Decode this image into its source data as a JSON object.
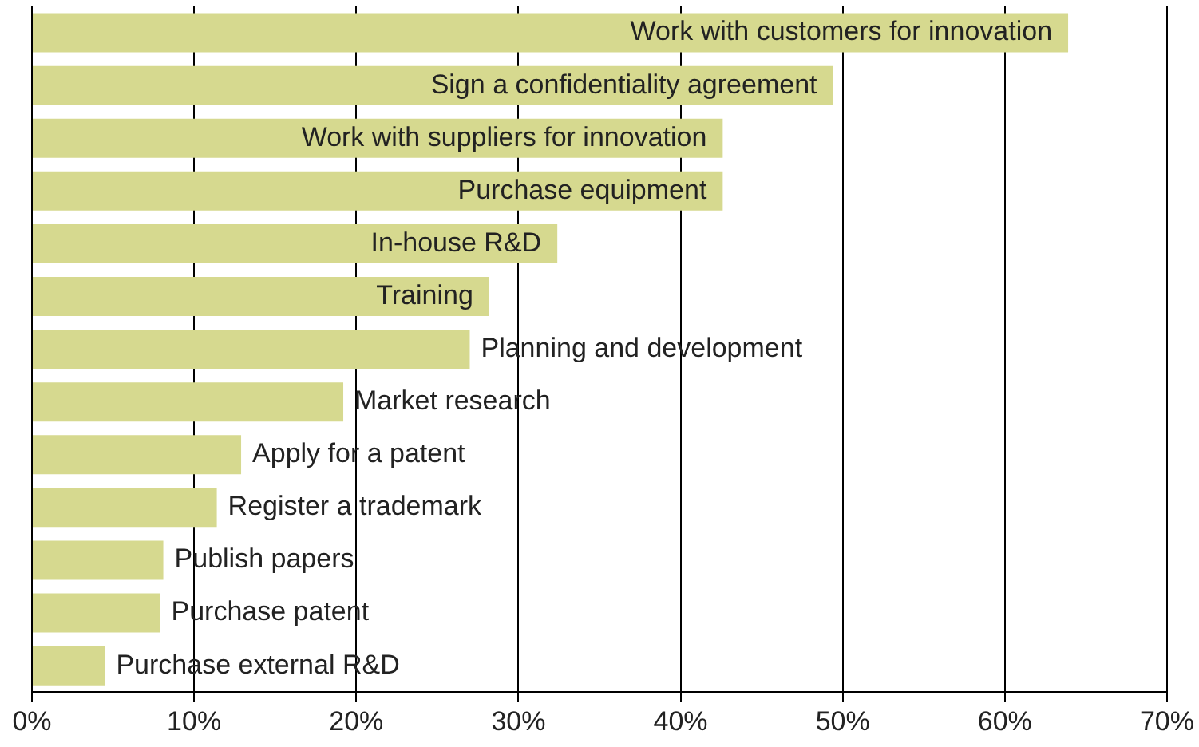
{
  "chart_data": {
    "type": "bar",
    "orientation": "horizontal",
    "categories": [
      "Work with customers for innovation",
      "Sign a confidentiality agreement",
      "Work with suppliers for innovation",
      "Purchase equipment",
      "In-house R&D",
      "Training",
      "Planning and development",
      "Market research",
      "Apply for a patent",
      "Register a trademark",
      "Publish papers",
      "Purchase patent",
      "Purchase external R&D"
    ],
    "values": [
      63.9,
      49.4,
      42.6,
      42.6,
      32.4,
      28.2,
      27.0,
      19.2,
      12.9,
      11.4,
      8.1,
      7.9,
      4.5
    ],
    "color": "#d6d98f",
    "xlim": [
      0,
      70
    ],
    "xticks": [
      {
        "value": 0,
        "label": "0%"
      },
      {
        "value": 10,
        "label": "10%"
      },
      {
        "value": 20,
        "label": "20%"
      },
      {
        "value": 30,
        "label": "30%"
      },
      {
        "value": 40,
        "label": "40%"
      },
      {
        "value": 50,
        "label": "50%"
      },
      {
        "value": 60,
        "label": "60%"
      },
      {
        "value": 70,
        "label": "70%"
      }
    ],
    "grid": "x",
    "legend": false,
    "tick_labels": "x"
  }
}
